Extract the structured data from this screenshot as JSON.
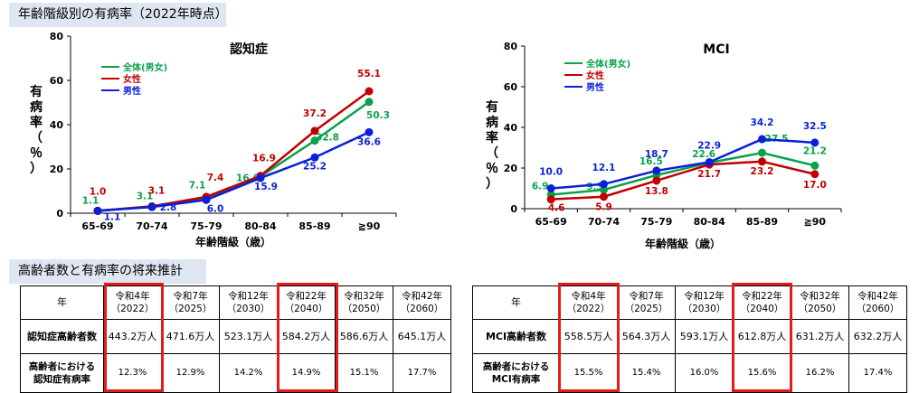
{
  "header": {
    "prevalence_title": "年齢階級別の有病率（2022年時点）",
    "projection_title": "高齢者数と有病率の将来推計"
  },
  "legend": {
    "total": "全体(男女)",
    "female": "女性",
    "male": "男性"
  },
  "colors": {
    "total": "#0aa14b",
    "female": "#c00000",
    "male": "#0a1fd8",
    "highlight": "#e31b1b"
  },
  "chart_data": [
    {
      "type": "line",
      "title": "認知症",
      "xlabel": "年齢階級（歳）",
      "ylabel": "有病率（％）",
      "categories": [
        "65-69",
        "70-74",
        "75-79",
        "80-84",
        "85-89",
        "≧90"
      ],
      "ylim": [
        0,
        80
      ],
      "yticks": [
        0,
        20,
        40,
        60,
        80
      ],
      "series": [
        {
          "name": "全体(男女)",
          "values": [
            1.1,
            3.1,
            7.1,
            16.6,
            32.8,
            50.3
          ],
          "labels": [
            "1.1",
            "3.1",
            "7.1",
            "16.6",
            "32.8",
            "50.3"
          ]
        },
        {
          "name": "女性",
          "values": [
            1.0,
            3.1,
            7.4,
            16.9,
            37.2,
            55.1
          ],
          "labels": [
            "1.0",
            "3.1",
            "7.4",
            "16.9",
            "37.2",
            "55.1"
          ]
        },
        {
          "name": "男性",
          "values": [
            1.1,
            2.8,
            6.0,
            15.9,
            25.2,
            36.6
          ],
          "labels": [
            "1.1",
            "2.8",
            "6.0",
            "15.9",
            "25.2",
            "36.6"
          ]
        }
      ]
    },
    {
      "type": "line",
      "title": "MCI",
      "xlabel": "年齢階級（歳）",
      "ylabel": "有病率（％）",
      "categories": [
        "65-69",
        "70-74",
        "75-79",
        "80-84",
        "85-89",
        "≧90"
      ],
      "ylim": [
        0,
        80
      ],
      "yticks": [
        0,
        20,
        40,
        60,
        80
      ],
      "series": [
        {
          "name": "全体(男女)",
          "values": [
            6.9,
            9.3,
            16.5,
            22.6,
            27.5,
            21.2
          ],
          "labels": [
            "6.9",
            "9.3",
            "16.5",
            "22.6",
            "27.5",
            "21.2"
          ]
        },
        {
          "name": "女性",
          "values": [
            4.6,
            5.9,
            13.8,
            21.7,
            23.2,
            17.0
          ],
          "labels": [
            "4.6",
            "5.9",
            "13.8",
            "21.7",
            "23.2",
            "17.0"
          ]
        },
        {
          "name": "男性",
          "values": [
            10.0,
            12.1,
            18.7,
            22.9,
            34.2,
            32.5
          ],
          "labels": [
            "10.0",
            "12.1",
            "18.7",
            "22.9",
            "34.2",
            "32.5"
          ]
        }
      ]
    }
  ],
  "tables": [
    {
      "corner": "年",
      "years": [
        {
          "era": "令和4年",
          "ad": "（2022）"
        },
        {
          "era": "令和7年",
          "ad": "（2025）"
        },
        {
          "era": "令和12年",
          "ad": "（2030）"
        },
        {
          "era": "令和22年",
          "ad": "（2040）"
        },
        {
          "era": "令和32年",
          "ad": "（2050）"
        },
        {
          "era": "令和42年",
          "ad": "（2060）"
        }
      ],
      "rows": [
        {
          "label": "認知症高齢者数",
          "cells": [
            "443.2万人",
            "471.6万人",
            "523.1万人",
            "584.2万人",
            "586.6万人",
            "645.1万人"
          ]
        },
        {
          "label1": "高齢者における",
          "label2": "認知症有病率",
          "cells": [
            "12.3%",
            "12.9%",
            "14.2%",
            "14.9%",
            "15.1%",
            "17.7%"
          ]
        }
      ]
    },
    {
      "corner": "年",
      "years": [
        {
          "era": "令和4年",
          "ad": "（2022）"
        },
        {
          "era": "令和7年",
          "ad": "（2025）"
        },
        {
          "era": "令和12年",
          "ad": "（2030）"
        },
        {
          "era": "令和22年",
          "ad": "（2040）"
        },
        {
          "era": "令和32年",
          "ad": "（2050）"
        },
        {
          "era": "令和42年",
          "ad": "（2060）"
        }
      ],
      "rows": [
        {
          "label": "MCI高齢者数",
          "cells": [
            "558.5万人",
            "564.3万人",
            "593.1万人",
            "612.8万人",
            "631.2万人",
            "632.2万人"
          ]
        },
        {
          "label1": "高齢者における",
          "label2": "MCI有病率",
          "cells": [
            "15.5%",
            "15.4%",
            "16.0%",
            "15.6%",
            "16.2%",
            "17.4%"
          ]
        }
      ]
    }
  ]
}
